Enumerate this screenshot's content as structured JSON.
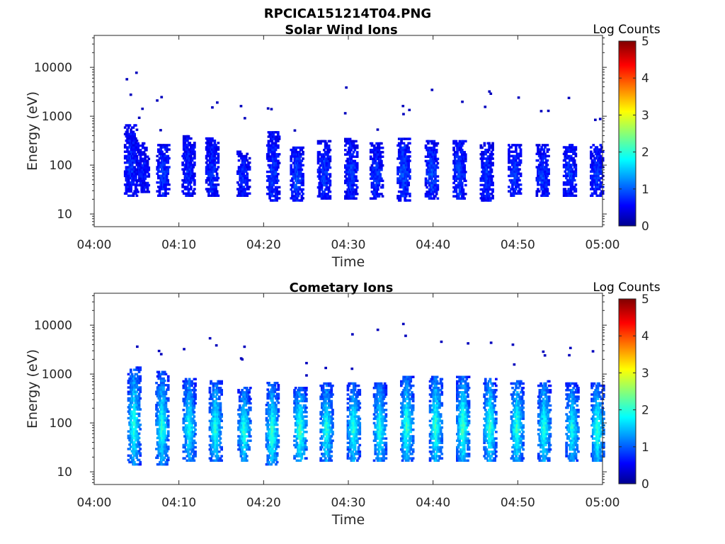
{
  "figure": {
    "filename": "RPCICA151214T04.PNG"
  },
  "colorbar": {
    "label": "Log Counts",
    "ticks": [
      "0",
      "1",
      "2",
      "3",
      "4",
      "5"
    ],
    "range": [
      0,
      5
    ],
    "colormap": "jet"
  },
  "chart_data": [
    {
      "type": "heatmap",
      "title": "Solar Wind Ions",
      "xlabel": "Time",
      "ylabel": "Energy (eV)",
      "xticks": [
        "04:00",
        "04:10",
        "04:20",
        "04:30",
        "04:40",
        "04:50",
        "05:00"
      ],
      "xlim_minutes": [
        0,
        60
      ],
      "yticks": [
        "10",
        "100",
        "1000",
        "10000"
      ],
      "ylim": [
        5.5,
        45000
      ],
      "yscale": "log",
      "colorbar_label": "Log Counts",
      "clim": [
        0,
        5
      ],
      "bursts": [
        {
          "t": 4.2,
          "elo": 25,
          "ehi": 700,
          "level": 0.5
        },
        {
          "t": 5.6,
          "elo": 30,
          "ehi": 300,
          "level": 0.4
        },
        {
          "t": 8.0,
          "elo": 25,
          "ehi": 300,
          "level": 0.6
        },
        {
          "t": 11.0,
          "elo": 25,
          "ehi": 450,
          "level": 0.5
        },
        {
          "t": 13.8,
          "elo": 25,
          "ehi": 400,
          "level": 0.5
        },
        {
          "t": 17.5,
          "elo": 25,
          "ehi": 200,
          "level": 0.5
        },
        {
          "t": 21.0,
          "elo": 20,
          "ehi": 500,
          "level": 0.6
        },
        {
          "t": 23.8,
          "elo": 20,
          "ehi": 250,
          "level": 0.7
        },
        {
          "t": 27.0,
          "elo": 22,
          "ehi": 350,
          "level": 0.6
        },
        {
          "t": 30.2,
          "elo": 22,
          "ehi": 400,
          "level": 0.6
        },
        {
          "t": 33.2,
          "elo": 22,
          "ehi": 300,
          "level": 0.6
        },
        {
          "t": 36.4,
          "elo": 20,
          "ehi": 400,
          "level": 0.7
        },
        {
          "t": 39.7,
          "elo": 22,
          "ehi": 350,
          "level": 0.7
        },
        {
          "t": 43.0,
          "elo": 22,
          "ehi": 350,
          "level": 0.7
        },
        {
          "t": 46.2,
          "elo": 20,
          "ehi": 300,
          "level": 0.6
        },
        {
          "t": 49.5,
          "elo": 25,
          "ehi": 300,
          "level": 0.6
        },
        {
          "t": 52.8,
          "elo": 25,
          "ehi": 300,
          "level": 0.6
        },
        {
          "t": 56.0,
          "elo": 25,
          "ehi": 300,
          "level": 0.6
        },
        {
          "t": 59.2,
          "elo": 25,
          "ehi": 300,
          "level": 0.6
        }
      ]
    },
    {
      "type": "heatmap",
      "title": "Cometary Ions",
      "xlabel": "Time",
      "ylabel": "Energy (eV)",
      "xticks": [
        "04:00",
        "04:10",
        "04:20",
        "04:30",
        "04:40",
        "04:50",
        "05:00"
      ],
      "xlim_minutes": [
        0,
        60
      ],
      "yticks": [
        "10",
        "100",
        "1000",
        "10000"
      ],
      "ylim": [
        5.5,
        45000
      ],
      "yscale": "log",
      "colorbar_label": "Log Counts",
      "clim": [
        0,
        5
      ],
      "bursts": [
        {
          "t": 4.6,
          "elo": 15,
          "ehi": 1500,
          "level": 1.9
        },
        {
          "t": 7.9,
          "elo": 15,
          "ehi": 1200,
          "level": 1.9
        },
        {
          "t": 11.1,
          "elo": 18,
          "ehi": 900,
          "level": 1.8
        },
        {
          "t": 14.2,
          "elo": 18,
          "ehi": 800,
          "level": 1.9
        },
        {
          "t": 17.6,
          "elo": 18,
          "ehi": 600,
          "level": 1.9
        },
        {
          "t": 20.9,
          "elo": 15,
          "ehi": 700,
          "level": 2.0
        },
        {
          "t": 24.2,
          "elo": 18,
          "ehi": 600,
          "level": 2.1
        },
        {
          "t": 27.3,
          "elo": 18,
          "ehi": 700,
          "level": 1.9
        },
        {
          "t": 30.5,
          "elo": 18,
          "ehi": 700,
          "level": 1.9
        },
        {
          "t": 33.6,
          "elo": 18,
          "ehi": 700,
          "level": 1.9
        },
        {
          "t": 36.8,
          "elo": 18,
          "ehi": 1000,
          "level": 2.0
        },
        {
          "t": 40.2,
          "elo": 18,
          "ehi": 1000,
          "level": 2.0
        },
        {
          "t": 43.4,
          "elo": 18,
          "ehi": 1000,
          "level": 2.1
        },
        {
          "t": 46.6,
          "elo": 18,
          "ehi": 900,
          "level": 2.0
        },
        {
          "t": 49.8,
          "elo": 18,
          "ehi": 800,
          "level": 2.0
        },
        {
          "t": 53.0,
          "elo": 18,
          "ehi": 800,
          "level": 1.9
        },
        {
          "t": 56.3,
          "elo": 18,
          "ehi": 700,
          "level": 1.8
        },
        {
          "t": 59.3,
          "elo": 18,
          "ehi": 700,
          "level": 2.0
        }
      ]
    }
  ]
}
